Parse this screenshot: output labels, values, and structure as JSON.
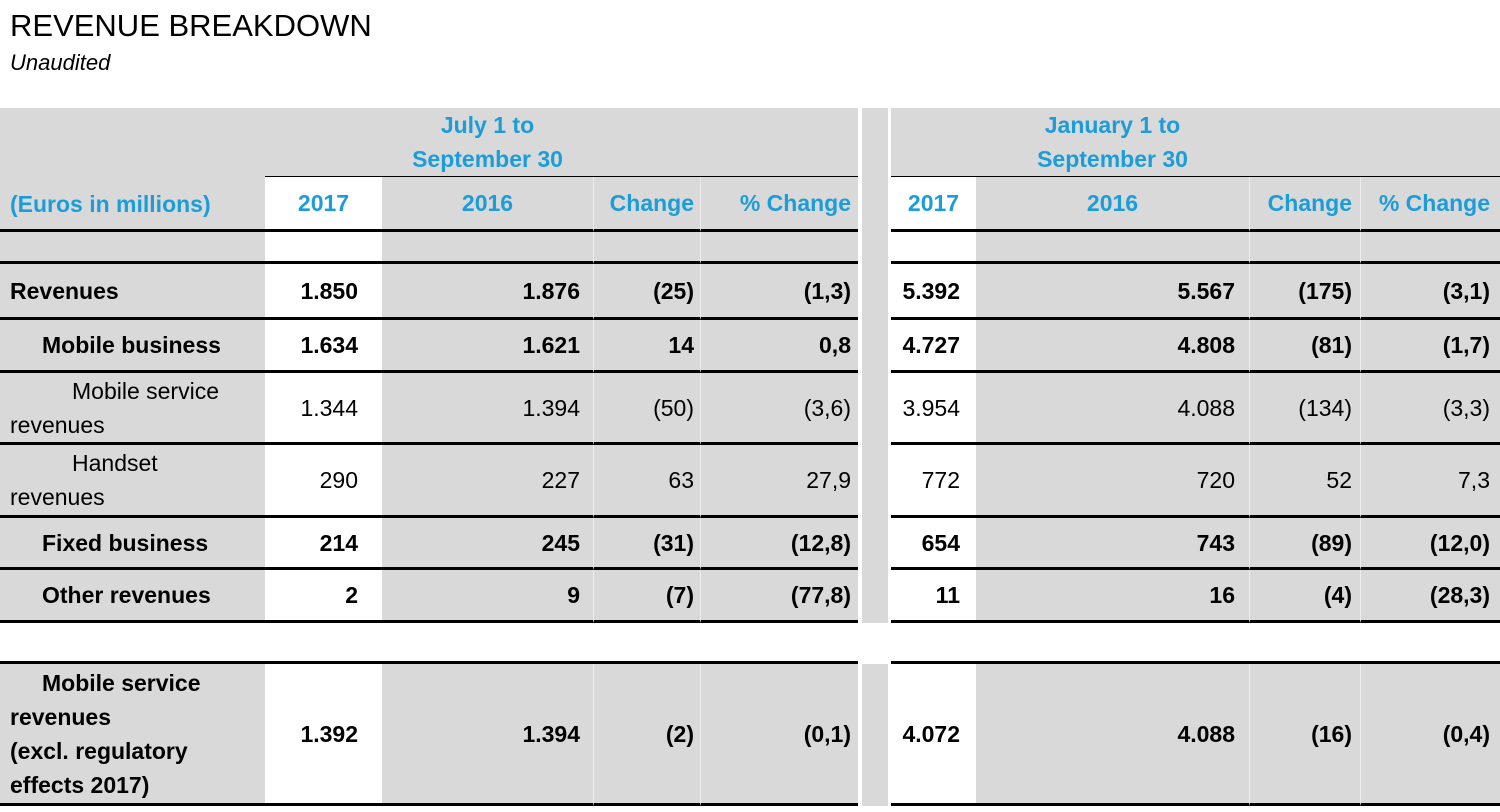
{
  "theme": {
    "accent": "#1B9DD9",
    "cell_background": "#D9D9D9"
  },
  "page": {
    "title": "REVENUE BREAKDOWN",
    "subtitle": "Unaudited",
    "units_label": "(Euros in millions)"
  },
  "table": {
    "period_groups": {
      "q3": "July 1 to\nSeptember 30",
      "ytd": "January 1 to\nSeptember 30"
    },
    "columns": [
      "2017",
      "2016",
      "Change",
      "% Change"
    ],
    "rows": [
      {
        "label": "Revenues",
        "bold": true,
        "q3": [
          "1.850",
          "1.876",
          "(25)",
          "(1,3)"
        ],
        "ytd": [
          "5.392",
          "5.567",
          "(175)",
          "(3,1)"
        ]
      },
      {
        "label": "Mobile business",
        "bold": true,
        "q3": [
          "1.634",
          "1.621",
          "14",
          "0,8"
        ],
        "ytd": [
          "4.727",
          "4.808",
          "(81)",
          "(1,7)"
        ]
      },
      {
        "label": "Mobile service\nrevenues",
        "bold": false,
        "q3": [
          "1.344",
          "1.394",
          "(50)",
          "(3,6)"
        ],
        "ytd": [
          "3.954",
          "4.088",
          "(134)",
          "(3,3)"
        ]
      },
      {
        "label": "Handset\nrevenues",
        "bold": false,
        "q3": [
          "290",
          "227",
          "63",
          "27,9"
        ],
        "ytd": [
          "772",
          "720",
          "52",
          "7,3"
        ]
      },
      {
        "label": "Fixed business",
        "bold": true,
        "q3": [
          "214",
          "245",
          "(31)",
          "(12,8)"
        ],
        "ytd": [
          "654",
          "743",
          "(89)",
          "(12,0)"
        ]
      },
      {
        "label": "Other revenues",
        "bold": true,
        "q3": [
          "2",
          "9",
          "(7)",
          "(77,8)"
        ],
        "ytd": [
          "11",
          "16",
          "(4)",
          "(28,3)"
        ]
      },
      {
        "label": "Mobile service\nrevenues\n(excl. regulatory\neffects 2017)",
        "bold": true,
        "q3": [
          "1.392",
          "1.394",
          "(2)",
          "(0,1)"
        ],
        "ytd": [
          "4.072",
          "4.088",
          "(16)",
          "(0,4)"
        ]
      }
    ]
  }
}
